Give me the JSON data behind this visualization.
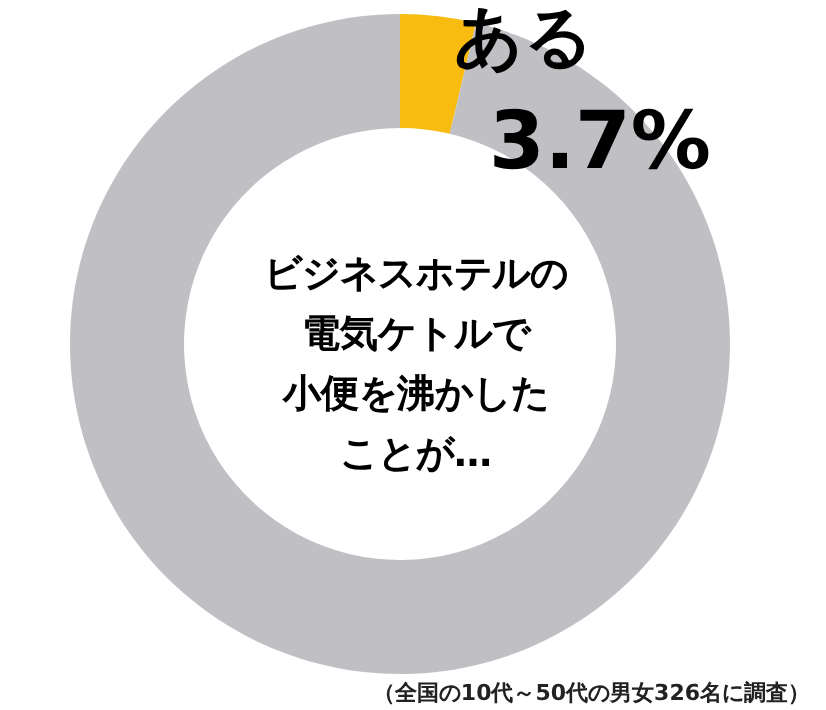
{
  "chart_data": {
    "type": "donut",
    "categories": [
      "ある",
      null
    ],
    "values": [
      3.7,
      96.3
    ],
    "colors": [
      "#f8bb10",
      "#c0bfc4"
    ],
    "value_labels": [
      "3.7%",
      null
    ],
    "annotations": [
      "ビジネスホテルの",
      "電気ケトルで",
      "小便を沸かした",
      "ことが…",
      "（全国の10代～50代の男女326名に調査）"
    ],
    "legend": false
  }
}
